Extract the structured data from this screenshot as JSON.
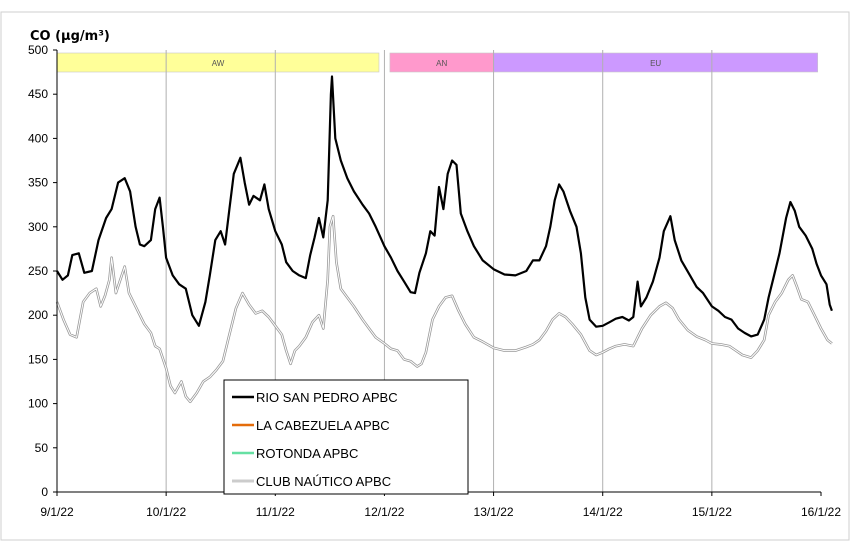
{
  "chart_data": {
    "type": "line",
    "title": "CO (µg/m³)",
    "xlabel": "",
    "ylabel": "",
    "ylim": [
      0,
      500
    ],
    "yticks": [
      0,
      50,
      100,
      150,
      200,
      250,
      300,
      350,
      400,
      450,
      500
    ],
    "xlim": [
      0,
      7
    ],
    "xticks": [
      {
        "x": 0,
        "label": "9/1/22"
      },
      {
        "x": 1,
        "label": "10/1/22"
      },
      {
        "x": 2,
        "label": "11/1/22"
      },
      {
        "x": 3,
        "label": "12/1/22"
      },
      {
        "x": 4,
        "label": "13/1/22"
      },
      {
        "x": 5,
        "label": "14/1/22"
      },
      {
        "x": 6,
        "label": "15/1/22"
      },
      {
        "x": 7,
        "label": "16/1/22"
      }
    ],
    "grid": "vertical",
    "bands": [
      {
        "label": "AW",
        "start": 0.0,
        "end": 2.95,
        "color": "#ffff99"
      },
      {
        "label": "AN",
        "start": 3.05,
        "end": 4.0,
        "color": "#ff99cc"
      },
      {
        "label": "EU",
        "start": 4.0,
        "end": 6.97,
        "color": "#cc99ff"
      }
    ],
    "legend_position": "bottom-left",
    "series": [
      {
        "name": "RIO SAN PEDRO APBC",
        "color": "#000000",
        "points": [
          [
            0.0,
            250
          ],
          [
            0.05,
            240
          ],
          [
            0.1,
            245
          ],
          [
            0.14,
            268
          ],
          [
            0.2,
            270
          ],
          [
            0.25,
            248
          ],
          [
            0.32,
            250
          ],
          [
            0.38,
            285
          ],
          [
            0.45,
            310
          ],
          [
            0.5,
            320
          ],
          [
            0.56,
            350
          ],
          [
            0.62,
            355
          ],
          [
            0.67,
            340
          ],
          [
            0.72,
            300
          ],
          [
            0.76,
            280
          ],
          [
            0.8,
            278
          ],
          [
            0.86,
            285
          ],
          [
            0.9,
            320
          ],
          [
            0.94,
            333
          ],
          [
            0.97,
            300
          ],
          [
            1.0,
            265
          ],
          [
            1.06,
            245
          ],
          [
            1.12,
            235
          ],
          [
            1.18,
            230
          ],
          [
            1.24,
            200
          ],
          [
            1.3,
            188
          ],
          [
            1.36,
            215
          ],
          [
            1.4,
            245
          ],
          [
            1.45,
            285
          ],
          [
            1.5,
            295
          ],
          [
            1.54,
            280
          ],
          [
            1.58,
            320
          ],
          [
            1.62,
            360
          ],
          [
            1.68,
            378
          ],
          [
            1.72,
            350
          ],
          [
            1.76,
            325
          ],
          [
            1.8,
            335
          ],
          [
            1.86,
            330
          ],
          [
            1.9,
            348
          ],
          [
            1.94,
            320
          ],
          [
            2.0,
            295
          ],
          [
            2.06,
            280
          ],
          [
            2.1,
            260
          ],
          [
            2.16,
            250
          ],
          [
            2.22,
            245
          ],
          [
            2.28,
            242
          ],
          [
            2.32,
            268
          ],
          [
            2.36,
            288
          ],
          [
            2.4,
            310
          ],
          [
            2.44,
            288
          ],
          [
            2.48,
            330
          ],
          [
            2.51,
            450
          ],
          [
            2.52,
            470
          ],
          [
            2.55,
            400
          ],
          [
            2.6,
            375
          ],
          [
            2.66,
            355
          ],
          [
            2.72,
            340
          ],
          [
            2.8,
            325
          ],
          [
            2.86,
            315
          ],
          [
            2.92,
            300
          ],
          [
            3.0,
            278
          ],
          [
            3.06,
            265
          ],
          [
            3.12,
            250
          ],
          [
            3.18,
            238
          ],
          [
            3.24,
            226
          ],
          [
            3.28,
            225
          ],
          [
            3.32,
            248
          ],
          [
            3.38,
            270
          ],
          [
            3.42,
            295
          ],
          [
            3.46,
            290
          ],
          [
            3.5,
            345
          ],
          [
            3.54,
            320
          ],
          [
            3.58,
            360
          ],
          [
            3.62,
            375
          ],
          [
            3.66,
            370
          ],
          [
            3.7,
            315
          ],
          [
            3.76,
            295
          ],
          [
            3.82,
            278
          ],
          [
            3.9,
            262
          ],
          [
            4.0,
            252
          ],
          [
            4.1,
            246
          ],
          [
            4.2,
            245
          ],
          [
            4.3,
            250
          ],
          [
            4.36,
            262
          ],
          [
            4.42,
            262
          ],
          [
            4.48,
            278
          ],
          [
            4.52,
            300
          ],
          [
            4.56,
            330
          ],
          [
            4.6,
            348
          ],
          [
            4.64,
            340
          ],
          [
            4.7,
            318
          ],
          [
            4.76,
            300
          ],
          [
            4.8,
            270
          ],
          [
            4.84,
            220
          ],
          [
            4.88,
            195
          ],
          [
            4.94,
            187
          ],
          [
            5.0,
            188
          ],
          [
            5.06,
            192
          ],
          [
            5.12,
            196
          ],
          [
            5.18,
            198
          ],
          [
            5.24,
            194
          ],
          [
            5.28,
            198
          ],
          [
            5.32,
            238
          ],
          [
            5.35,
            210
          ],
          [
            5.4,
            220
          ],
          [
            5.46,
            238
          ],
          [
            5.52,
            265
          ],
          [
            5.56,
            295
          ],
          [
            5.62,
            312
          ],
          [
            5.66,
            285
          ],
          [
            5.72,
            262
          ],
          [
            5.8,
            245
          ],
          [
            5.86,
            232
          ],
          [
            5.92,
            225
          ],
          [
            6.0,
            210
          ],
          [
            6.06,
            205
          ],
          [
            6.12,
            198
          ],
          [
            6.18,
            195
          ],
          [
            6.24,
            185
          ],
          [
            6.3,
            180
          ],
          [
            6.36,
            176
          ],
          [
            6.42,
            178
          ],
          [
            6.48,
            195
          ],
          [
            6.52,
            220
          ],
          [
            6.56,
            240
          ],
          [
            6.62,
            270
          ],
          [
            6.68,
            310
          ],
          [
            6.72,
            328
          ],
          [
            6.76,
            318
          ],
          [
            6.8,
            300
          ],
          [
            6.86,
            290
          ],
          [
            6.92,
            275
          ],
          [
            6.96,
            258
          ],
          [
            7.0,
            245
          ],
          [
            7.05,
            235
          ],
          [
            7.08,
            212
          ],
          [
            7.1,
            205
          ]
        ]
      },
      {
        "name": "LA CABEZUELA  APBC",
        "color": "#e46c0a",
        "points": []
      },
      {
        "name": "ROTONDA  APBC",
        "color": "#66e0a3",
        "points": []
      },
      {
        "name": "CLUB NAÚTICO  APBC",
        "color": "#9a9a9a",
        "points": [
          [
            0.0,
            215
          ],
          [
            0.06,
            195
          ],
          [
            0.12,
            178
          ],
          [
            0.18,
            175
          ],
          [
            0.24,
            215
          ],
          [
            0.3,
            225
          ],
          [
            0.36,
            230
          ],
          [
            0.4,
            210
          ],
          [
            0.44,
            222
          ],
          [
            0.48,
            240
          ],
          [
            0.5,
            265
          ],
          [
            0.54,
            225
          ],
          [
            0.58,
            240
          ],
          [
            0.62,
            255
          ],
          [
            0.66,
            225
          ],
          [
            0.72,
            210
          ],
          [
            0.76,
            200
          ],
          [
            0.8,
            190
          ],
          [
            0.86,
            180
          ],
          [
            0.9,
            165
          ],
          [
            0.94,
            162
          ],
          [
            1.0,
            140
          ],
          [
            1.04,
            120
          ],
          [
            1.08,
            112
          ],
          [
            1.14,
            125
          ],
          [
            1.18,
            108
          ],
          [
            1.22,
            102
          ],
          [
            1.28,
            112
          ],
          [
            1.34,
            125
          ],
          [
            1.4,
            130
          ],
          [
            1.46,
            138
          ],
          [
            1.52,
            148
          ],
          [
            1.58,
            178
          ],
          [
            1.64,
            208
          ],
          [
            1.7,
            225
          ],
          [
            1.76,
            212
          ],
          [
            1.82,
            202
          ],
          [
            1.88,
            205
          ],
          [
            1.94,
            198
          ],
          [
            2.0,
            188
          ],
          [
            2.06,
            178
          ],
          [
            2.1,
            160
          ],
          [
            2.14,
            145
          ],
          [
            2.18,
            160
          ],
          [
            2.22,
            165
          ],
          [
            2.28,
            175
          ],
          [
            2.34,
            192
          ],
          [
            2.4,
            200
          ],
          [
            2.44,
            185
          ],
          [
            2.48,
            240
          ],
          [
            2.5,
            300
          ],
          [
            2.53,
            312
          ],
          [
            2.56,
            260
          ],
          [
            2.6,
            230
          ],
          [
            2.66,
            220
          ],
          [
            2.72,
            210
          ],
          [
            2.8,
            195
          ],
          [
            2.86,
            185
          ],
          [
            2.92,
            175
          ],
          [
            3.0,
            168
          ],
          [
            3.06,
            162
          ],
          [
            3.12,
            160
          ],
          [
            3.18,
            150
          ],
          [
            3.24,
            148
          ],
          [
            3.3,
            142
          ],
          [
            3.34,
            145
          ],
          [
            3.38,
            158
          ],
          [
            3.44,
            195
          ],
          [
            3.5,
            210
          ],
          [
            3.56,
            220
          ],
          [
            3.62,
            222
          ],
          [
            3.68,
            205
          ],
          [
            3.74,
            190
          ],
          [
            3.82,
            175
          ],
          [
            3.9,
            170
          ],
          [
            4.0,
            163
          ],
          [
            4.1,
            160
          ],
          [
            4.2,
            160
          ],
          [
            4.3,
            164
          ],
          [
            4.36,
            167
          ],
          [
            4.42,
            172
          ],
          [
            4.48,
            182
          ],
          [
            4.54,
            195
          ],
          [
            4.6,
            202
          ],
          [
            4.66,
            198
          ],
          [
            4.72,
            190
          ],
          [
            4.8,
            178
          ],
          [
            4.88,
            160
          ],
          [
            4.94,
            155
          ],
          [
            5.0,
            158
          ],
          [
            5.06,
            162
          ],
          [
            5.12,
            165
          ],
          [
            5.2,
            167
          ],
          [
            5.28,
            165
          ],
          [
            5.36,
            185
          ],
          [
            5.44,
            200
          ],
          [
            5.52,
            210
          ],
          [
            5.58,
            214
          ],
          [
            5.64,
            208
          ],
          [
            5.7,
            195
          ],
          [
            5.78,
            183
          ],
          [
            5.86,
            176
          ],
          [
            5.94,
            172
          ],
          [
            6.0,
            168
          ],
          [
            6.08,
            167
          ],
          [
            6.16,
            165
          ],
          [
            6.22,
            160
          ],
          [
            6.28,
            155
          ],
          [
            6.36,
            152
          ],
          [
            6.42,
            160
          ],
          [
            6.48,
            172
          ],
          [
            6.52,
            200
          ],
          [
            6.58,
            215
          ],
          [
            6.64,
            225
          ],
          [
            6.7,
            240
          ],
          [
            6.74,
            245
          ],
          [
            6.78,
            232
          ],
          [
            6.82,
            218
          ],
          [
            6.88,
            215
          ],
          [
            6.94,
            200
          ],
          [
            7.0,
            185
          ],
          [
            7.06,
            172
          ],
          [
            7.1,
            168
          ]
        ]
      }
    ]
  }
}
